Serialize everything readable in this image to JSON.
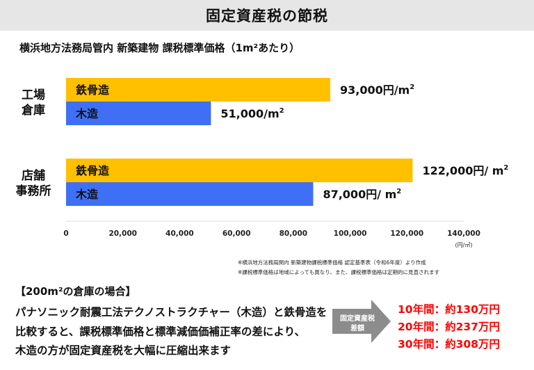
{
  "header": {
    "title": "固定資産税の節税"
  },
  "chart_data": {
    "type": "bar",
    "orientation": "horizontal",
    "title": "横浜地方法務局管内 新築建物 課税標準価格（1m²あたり）",
    "categories": [
      "工場\n倉庫",
      "店舗\n事務所"
    ],
    "series": [
      {
        "name": "鉄骨造",
        "color": "#ffc000",
        "values": [
          93000,
          122000
        ],
        "labels": [
          "93,000円/m²",
          "122,000円/ m²"
        ]
      },
      {
        "name": "木造",
        "color": "#3f6ff5",
        "values": [
          51000,
          87000
        ],
        "labels": [
          "51,000/m²",
          "87,000円/ m²"
        ]
      }
    ],
    "xlim": [
      0,
      140000
    ],
    "xticks": [
      "0",
      "20,000",
      "40,000",
      "60,000",
      "80,000",
      "100,000",
      "120,000",
      "140,000"
    ],
    "xunit": "(円/㎡)",
    "grid": false
  },
  "notes": [
    "※横浜地方法務局関内 新築建物課税標準価格 認定基準表（令和6年度）より作成",
    "※課税標準価格は地域によっても異なり、また、課税標準価格は定期的に見直されます"
  ],
  "case": {
    "heading": "【200m²の倉庫の場合】",
    "lines": [
      "パナソニック耐震工法テクノストラクチャー（木造）と鉄骨造を",
      "比較すると、課税標準価格と標準減価価補正率の差により、",
      "木造の方が固定資産税を大幅に圧縮出来ます"
    ]
  },
  "arrow": {
    "line1": "固定資産税",
    "line2": "差額"
  },
  "results": [
    "10年間：約130万円",
    "20年間：約237万円",
    "30年間：約308万円"
  ]
}
